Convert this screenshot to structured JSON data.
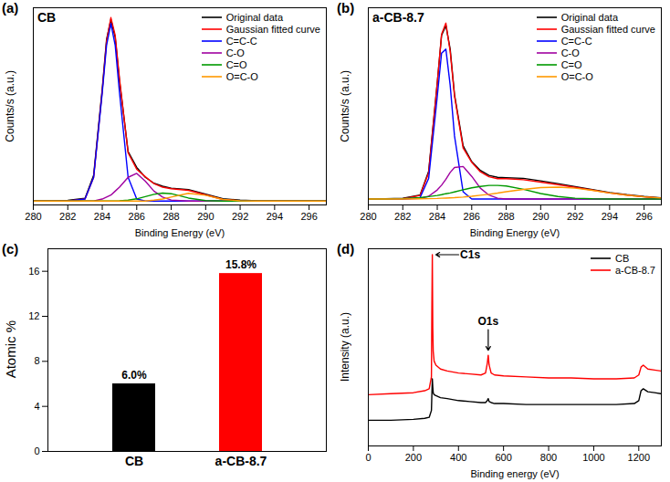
{
  "chart_data": [
    {
      "type": "line",
      "panel_label": "(a)",
      "title": "CB",
      "xlabel": "Binding Energy (eV)",
      "ylabel": "Counts/s (a.u.)",
      "x": [
        280,
        281,
        282,
        283,
        283.5,
        284,
        284.25,
        284.5,
        284.75,
        285,
        285.5,
        286,
        286.5,
        287,
        287.5,
        288,
        289,
        290,
        291,
        292,
        293,
        294,
        295,
        296,
        297
      ],
      "series": [
        {
          "name": "Original data",
          "color": "#000000",
          "values": [
            2,
            2,
            2.3,
            3.4,
            15,
            59,
            84,
            94,
            85,
            63,
            27,
            19,
            14,
            11,
            9.5,
            8.5,
            7.8,
            5.5,
            3.2,
            2.4,
            2.1,
            2,
            2,
            2,
            2
          ]
        },
        {
          "name": "Gaussian fitted curve",
          "color": "#ff0000",
          "values": [
            2,
            2,
            2,
            3,
            14,
            58,
            83,
            95,
            86,
            64,
            26.4,
            18.1,
            14.3,
            10.8,
            9,
            8.2,
            7.4,
            5.1,
            2.8,
            2.1,
            2,
            2,
            2,
            2,
            2
          ]
        },
        {
          "name": "C=C-C",
          "color": "#0000ff",
          "values": [
            2,
            2,
            2,
            3,
            14,
            57,
            81,
            92,
            81,
            57,
            14,
            3,
            2,
            2,
            2,
            2,
            2,
            2,
            2,
            2,
            2,
            2,
            2,
            2,
            2
          ]
        },
        {
          "name": "C-O",
          "color": "#a000a0",
          "values": [
            2,
            2,
            2,
            2,
            2,
            3,
            4,
            5,
            7,
            9,
            14,
            16,
            12,
            7,
            4,
            2.5,
            2,
            2,
            2,
            2,
            2,
            2,
            2,
            2,
            2
          ]
        },
        {
          "name": "C=O",
          "color": "#009900",
          "values": [
            2,
            2,
            2,
            2,
            2,
            2,
            2,
            2,
            2,
            2.1,
            2.4,
            3.1,
            4.2,
            5.4,
            6,
            5.7,
            3.5,
            2.2,
            2,
            2,
            2,
            2,
            2,
            2,
            2
          ]
        },
        {
          "name": "O=C-O",
          "color": "#ff9900",
          "values": [
            2,
            2,
            2,
            2,
            2,
            2,
            2,
            2,
            2,
            2,
            2,
            2,
            2,
            2.4,
            3,
            4,
            5.9,
            4.9,
            2.8,
            2.1,
            2,
            2,
            2,
            2,
            2
          ]
        }
      ],
      "xlim": [
        280,
        297
      ],
      "xticks": [
        280,
        282,
        284,
        286,
        288,
        290,
        292,
        294,
        296
      ],
      "ylim": [
        0,
        100
      ],
      "yticks": [],
      "tick_labels": "x",
      "legend": "upper right"
    },
    {
      "type": "line",
      "panel_label": "(b)",
      "title": "a-CB-8.7",
      "xlabel": "Binding Energy (eV)",
      "ylabel": "Counts/s (a.u.)",
      "x": [
        280,
        281,
        282,
        283,
        283.5,
        284,
        284.25,
        284.5,
        284.75,
        285,
        285.5,
        286,
        286.5,
        287,
        287.5,
        288,
        289,
        290,
        291,
        292,
        293,
        294,
        295,
        296,
        297
      ],
      "series": [
        {
          "name": "Original data",
          "color": "#000000",
          "values": [
            3,
            3.1,
            3.4,
            5,
            17,
            62,
            86,
            91,
            79,
            56,
            30,
            22,
            17.5,
            15,
            14,
            13.8,
            13.5,
            12.2,
            10.8,
            9.3,
            7.8,
            6.3,
            5.2,
            4.3,
            3.6
          ]
        },
        {
          "name": "Gaussian fitted curve",
          "color": "#ff0000",
          "values": [
            3,
            3,
            3.2,
            4.8,
            16.2,
            61.7,
            86.6,
            92.2,
            77.9,
            55.3,
            28.9,
            21.6,
            16.8,
            14.3,
            13.3,
            13.3,
            12.8,
            11.6,
            10.3,
            8.9,
            7.5,
            6.1,
            5,
            4.1,
            3.5
          ]
        },
        {
          "name": "C=C-C",
          "color": "#0000ff",
          "values": [
            3,
            3,
            3,
            3.7,
            13.4,
            55,
            77,
            79,
            60.7,
            35,
            6.7,
            3,
            3,
            3,
            3,
            3,
            3,
            3,
            3,
            3,
            3,
            3,
            3,
            3,
            3
          ]
        },
        {
          "name": "C-O",
          "color": "#a000a0",
          "values": [
            3,
            3,
            3,
            3.3,
            4.4,
            7.6,
            10,
            13,
            16.5,
            19,
            19.5,
            14.5,
            8.5,
            5,
            3.4,
            3,
            3,
            3,
            3,
            3,
            3,
            3,
            3,
            3,
            3
          ]
        },
        {
          "name": "C=O",
          "color": "#009900",
          "values": [
            3,
            3,
            3.2,
            3.7,
            4.2,
            4.8,
            5.2,
            5.7,
            6.1,
            6.6,
            7.7,
            8.7,
            9.4,
            9.9,
            9.9,
            9.6,
            7.9,
            5.8,
            4.3,
            3.4,
            3.1,
            3,
            3,
            3,
            3
          ]
        },
        {
          "name": "O=C-O",
          "color": "#ff9900",
          "values": [
            3,
            3,
            3,
            3.1,
            3.2,
            3.3,
            3.4,
            3.5,
            3.6,
            3.7,
            4,
            4.4,
            4.9,
            5.4,
            6,
            6.7,
            7.9,
            8.8,
            9,
            8.5,
            7.4,
            6.1,
            5,
            4.1,
            3.5
          ]
        }
      ],
      "xlim": [
        280,
        297
      ],
      "xticks": [
        280,
        282,
        284,
        286,
        288,
        290,
        292,
        294,
        296
      ],
      "ylim": [
        0,
        100
      ],
      "yticks": [],
      "tick_labels": "x",
      "legend": "upper right"
    },
    {
      "type": "bar",
      "panel_label": "(c)",
      "ylabel": "Atomic %",
      "categories": [
        "CB",
        "a-CB-8.7"
      ],
      "values": [
        6.0,
        15.8
      ],
      "value_labels": [
        "6.0%",
        "15.8%"
      ],
      "colors": [
        "#000000",
        "#ff0000"
      ],
      "ylim": [
        0,
        18
      ],
      "yticks": [
        0,
        4,
        8,
        12,
        16
      ],
      "data_labels": true
    },
    {
      "type": "line",
      "panel_label": "(d)",
      "xlabel": "Binding energy (eV)",
      "ylabel": "Intensity (a.u.)",
      "x": [
        0,
        100,
        200,
        250,
        270,
        280,
        282,
        284,
        286,
        288,
        292,
        300,
        320,
        350,
        400,
        450,
        500,
        520,
        528,
        532,
        536,
        545,
        560,
        600,
        700,
        800,
        900,
        1000,
        1100,
        1180,
        1200,
        1210,
        1220,
        1240,
        1270,
        1300
      ],
      "series": [
        {
          "name": "CB",
          "color": "#000000",
          "values": [
            13,
            13,
            13.5,
            14,
            14.5,
            18,
            26,
            34,
            30,
            27,
            26,
            25.5,
            24.5,
            24,
            23,
            22.5,
            22,
            22,
            23,
            24,
            22.5,
            22,
            21.5,
            21.5,
            21,
            21,
            21,
            21,
            21,
            21.5,
            23,
            28,
            29,
            27.5,
            27,
            26.5
          ]
        },
        {
          "name": "a-CB-8.7",
          "color": "#ff0000",
          "values": [
            26,
            26.5,
            27,
            28,
            29,
            35,
            70,
            97,
            60,
            48,
            43,
            41,
            39,
            38,
            37,
            36.5,
            36,
            37,
            42,
            46,
            41,
            37,
            36,
            35.5,
            35,
            34.5,
            34.5,
            34,
            34,
            34.5,
            36,
            40,
            41,
            39,
            38.5,
            38
          ]
        }
      ],
      "annotations": [
        {
          "text": "C1s",
          "x": 284,
          "y": 97
        },
        {
          "text": "O1s",
          "x": 532,
          "y": 46
        }
      ],
      "xlim": [
        0,
        1300
      ],
      "xticks": [
        0,
        200,
        400,
        600,
        800,
        1000,
        1200
      ],
      "ylim": [
        0,
        100
      ],
      "yticks": [],
      "tick_labels": "x",
      "legend": "upper right"
    }
  ]
}
